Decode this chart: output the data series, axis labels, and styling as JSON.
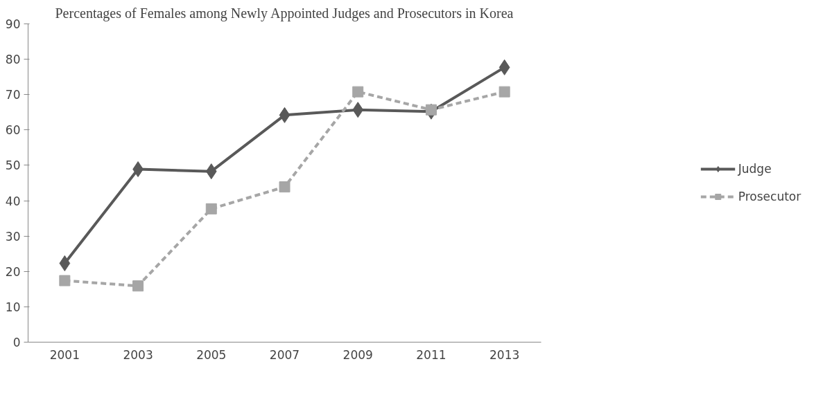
{
  "chart_data": {
    "type": "line",
    "title": "Percentages of Females among Newly Appointed Judges and Prosecutors in Korea",
    "categories": [
      "2001",
      "2003",
      "2005",
      "2007",
      "2009",
      "2011",
      "2013"
    ],
    "series": [
      {
        "name": "Judge",
        "color": "#595959",
        "marker": "diamond",
        "line_style": "solid",
        "values": [
          22.3,
          48.9,
          48.3,
          64.2,
          65.7,
          65.2,
          77.7
        ]
      },
      {
        "name": "Prosecutor",
        "color": "#a6a6a6",
        "marker": "square",
        "line_style": "dashed",
        "values": [
          17.4,
          15.9,
          37.7,
          43.9,
          70.8,
          65.7,
          70.8
        ]
      }
    ],
    "ylim": [
      0,
      90
    ],
    "yticks": [
      0,
      10,
      20,
      30,
      40,
      50,
      60,
      70,
      80,
      90
    ],
    "grid": false,
    "legend": "right"
  }
}
